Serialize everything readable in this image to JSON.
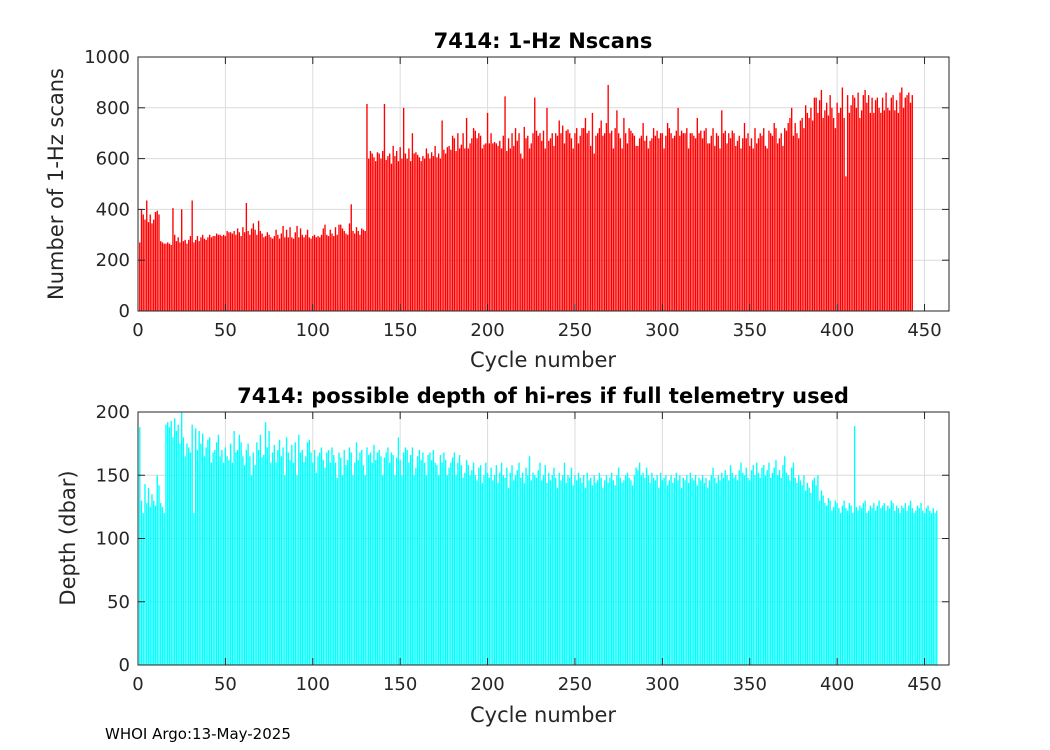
{
  "footer": {
    "text": "WHOI Argo:13-May-2025"
  },
  "chart_data": [
    {
      "type": "bar",
      "title": "7414: 1-Hz Nscans",
      "xlabel": "Cycle number",
      "ylabel": "Number of 1-Hz scans",
      "xlim": [
        0,
        464
      ],
      "ylim": [
        0,
        1000
      ],
      "xticks": [
        0,
        50,
        100,
        150,
        200,
        250,
        300,
        350,
        400,
        450
      ],
      "yticks": [
        0,
        200,
        400,
        600,
        800,
        1000
      ],
      "grid": true,
      "color": "#ff0000",
      "x_start": 1,
      "values": [
        270,
        400,
        380,
        360,
        435,
        350,
        380,
        345,
        360,
        390,
        395,
        380,
        275,
        270,
        265,
        265,
        270,
        265,
        260,
        405,
        300,
        275,
        290,
        270,
        400,
        275,
        280,
        265,
        280,
        295,
        435,
        270,
        280,
        295,
        275,
        290,
        300,
        285,
        280,
        290,
        300,
        290,
        295,
        295,
        305,
        300,
        300,
        295,
        300,
        295,
        315,
        310,
        310,
        305,
        315,
        300,
        325,
        310,
        295,
        330,
        310,
        425,
        315,
        300,
        325,
        345,
        320,
        300,
        355,
        315,
        305,
        290,
        295,
        310,
        300,
        290,
        285,
        295,
        320,
        300,
        285,
        305,
        335,
        290,
        320,
        290,
        330,
        290,
        285,
        310,
        335,
        290,
        325,
        300,
        290,
        300,
        320,
        290,
        285,
        295,
        300,
        290,
        295,
        290,
        300,
        325,
        340,
        300,
        295,
        320,
        305,
        295,
        330,
        300,
        340,
        340,
        325,
        315,
        305,
        300,
        345,
        420,
        315,
        305,
        330,
        315,
        300,
        325,
        320,
        315,
        815,
        600,
        630,
        620,
        605,
        590,
        625,
        620,
        600,
        630,
        815,
        595,
        610,
        620,
        580,
        650,
        610,
        630,
        590,
        645,
        600,
        800,
        620,
        600,
        640,
        590,
        700,
        620,
        625,
        615,
        605,
        590,
        610,
        600,
        640,
        620,
        600,
        625,
        610,
        650,
        605,
        620,
        600,
        750,
        635,
        620,
        645,
        650,
        635,
        690,
        680,
        630,
        700,
        640,
        655,
        700,
        640,
        760,
        640,
        660,
        680,
        720,
        710,
        680,
        700,
        690,
        640,
        655,
        660,
        780,
        660,
        700,
        660,
        665,
        660,
        650,
        670,
        640,
        690,
        845,
        630,
        680,
        640,
        700,
        650,
        720,
        670,
        700,
        620,
        600,
        725,
        680,
        690,
        640,
        660,
        700,
        840,
        710,
        690,
        700,
        670,
        710,
        640,
        800,
        670,
        680,
        700,
        650,
        700,
        690,
        750,
        700,
        730,
        660,
        710,
        715,
        700,
        680,
        640,
        700,
        720,
        660,
        690,
        720,
        720,
        760,
        700,
        710,
        650,
        780,
        620,
        690,
        700,
        720,
        750,
        690,
        700,
        740,
        890,
        700,
        710,
        640,
        720,
        790,
        700,
        680,
        640,
        760,
        700,
        660,
        720,
        710,
        700,
        690,
        650,
        650,
        680,
        690,
        740,
        670,
        690,
        640,
        670,
        680,
        720,
        690,
        710,
        680,
        700,
        700,
        640,
        690,
        740,
        720,
        700,
        680,
        690,
        710,
        800,
        690,
        710,
        700,
        700,
        720,
        640,
        700,
        700,
        690,
        680,
        760,
        700,
        710,
        680,
        710,
        720,
        660,
        660,
        690,
        720,
        650,
        700,
        690,
        640,
        790,
        700,
        710,
        660,
        700,
        680,
        710,
        700,
        650,
        670,
        690,
        640,
        680,
        740,
        680,
        700,
        650,
        680,
        640,
        720,
        660,
        680,
        700,
        690,
        720,
        650,
        640,
        710,
        700,
        690,
        740,
        720,
        660,
        680,
        700,
        650,
        720,
        710,
        740,
        760,
        800,
        690,
        740,
        700,
        680,
        750,
        760,
        720,
        810,
        780,
        760,
        800,
        750,
        840,
        840,
        780,
        830,
        870,
        760,
        790,
        820,
        770,
        850,
        800,
        760,
        720,
        820,
        780,
        800,
        880,
        760,
        530,
        850,
        780,
        810,
        850,
        840,
        800,
        860,
        760,
        790,
        850,
        870,
        820,
        850,
        780,
        840,
        780,
        830,
        840,
        800,
        780,
        840,
        790,
        860,
        800,
        790,
        840,
        850,
        790,
        830,
        780,
        860,
        880,
        800,
        840,
        850,
        860,
        820,
        850
      ]
    },
    {
      "type": "bar",
      "title": "7414: possible depth of hi-res if full telemetry used",
      "xlabel": "Cycle number",
      "ylabel": "Depth (dbar)",
      "xlim": [
        0,
        464
      ],
      "ylim": [
        0,
        200
      ],
      "xticks": [
        0,
        50,
        100,
        150,
        200,
        250,
        300,
        350,
        400,
        450
      ],
      "yticks": [
        0,
        50,
        100,
        150,
        200
      ],
      "grid": true,
      "color": "#00ffff",
      "x_start": 1,
      "values": [
        188,
        130,
        120,
        143,
        128,
        140,
        125,
        135,
        130,
        126,
        150,
        142,
        128,
        125,
        120,
        190,
        192,
        188,
        193,
        180,
        195,
        185,
        190,
        175,
        200,
        180,
        165,
        175,
        172,
        168,
        190,
        120,
        187,
        170,
        185,
        175,
        183,
        165,
        172,
        178,
        180,
        160,
        168,
        170,
        176,
        182,
        165,
        170,
        160,
        172,
        165,
        162,
        175,
        160,
        185,
        168,
        170,
        182,
        176,
        165,
        158,
        170,
        175,
        165,
        150,
        168,
        158,
        176,
        170,
        182,
        164,
        166,
        192,
        172,
        185,
        160,
        168,
        174,
        160,
        170,
        178,
        165,
        172,
        150,
        180,
        168,
        162,
        174,
        160,
        176,
        150,
        182,
        168,
        170,
        160,
        165,
        176,
        178,
        168,
        160,
        170,
        152,
        165,
        168,
        172,
        162,
        156,
        168,
        170,
        160,
        172,
        166,
        160,
        148,
        168,
        164,
        150,
        170,
        158,
        162,
        172,
        168,
        150,
        160,
        176,
        162,
        168,
        170,
        158,
        150,
        172,
        166,
        168,
        160,
        174,
        162,
        168,
        170,
        165,
        150,
        164,
        168,
        172,
        160,
        168,
        166,
        150,
        164,
        180,
        162,
        150,
        168,
        172,
        170,
        160,
        166,
        172,
        150,
        156,
        165,
        170,
        162,
        168,
        160,
        150,
        166,
        168,
        162,
        170,
        160,
        158,
        150,
        166,
        160,
        168,
        162,
        150,
        156,
        160,
        164,
        168,
        150,
        160,
        166,
        158,
        148,
        152,
        162,
        158,
        150,
        154,
        160,
        150,
        146,
        156,
        158,
        144,
        150,
        160,
        152,
        148,
        156,
        146,
        150,
        158,
        144,
        152,
        160,
        150,
        148,
        156,
        140,
        152,
        158,
        146,
        150,
        154,
        160,
        148,
        152,
        144,
        156,
        150,
        165,
        146,
        152,
        150,
        148,
        154,
        160,
        146,
        150,
        158,
        144,
        152,
        146,
        150,
        156,
        148,
        140,
        152,
        146,
        150,
        160,
        144,
        150,
        148,
        156,
        142,
        150,
        146,
        152,
        148,
        144,
        150,
        140,
        152,
        146,
        148,
        142,
        150,
        144,
        146,
        152,
        148,
        140,
        146,
        150,
        144,
        148,
        152,
        146,
        142,
        150,
        156,
        148,
        144,
        146,
        150,
        152,
        148,
        146,
        142,
        150,
        156,
        154,
        160,
        150,
        152,
        148,
        156,
        150,
        144,
        152,
        148,
        146,
        150,
        140,
        152,
        146,
        148,
        150,
        142,
        146,
        150,
        144,
        148,
        152,
        146,
        150,
        140,
        148,
        146,
        150,
        144,
        152,
        148,
        146,
        150,
        142,
        148,
        146,
        150,
        144,
        148,
        140,
        146,
        150,
        156,
        148,
        144,
        150,
        146,
        152,
        148,
        154,
        150,
        146,
        158,
        152,
        148,
        150,
        146,
        154,
        160,
        152,
        150,
        156,
        148,
        146,
        154,
        158,
        150,
        160,
        152,
        148,
        156,
        158,
        150,
        154,
        160,
        148,
        152,
        156,
        162,
        150,
        154,
        148,
        158,
        165,
        152,
        150,
        146,
        156,
        160,
        148,
        144,
        150,
        146,
        142,
        150,
        138,
        144,
        140,
        136,
        146,
        148,
        142,
        150,
        130,
        138,
        134,
        128,
        126,
        132,
        130,
        122,
        125,
        130,
        128,
        124,
        120,
        126,
        130,
        124,
        122,
        128,
        126,
        120,
        189,
        125,
        122,
        126,
        124,
        128,
        130,
        120,
        122,
        126,
        124,
        128,
        122,
        126,
        130,
        124,
        126,
        128,
        122,
        126,
        124,
        130,
        128,
        122,
        126,
        124,
        120,
        126,
        124,
        128,
        122,
        126,
        130,
        124,
        120,
        122,
        126,
        124,
        128,
        122,
        120,
        124,
        126,
        122,
        120,
        124,
        120,
        122
      ]
    }
  ]
}
